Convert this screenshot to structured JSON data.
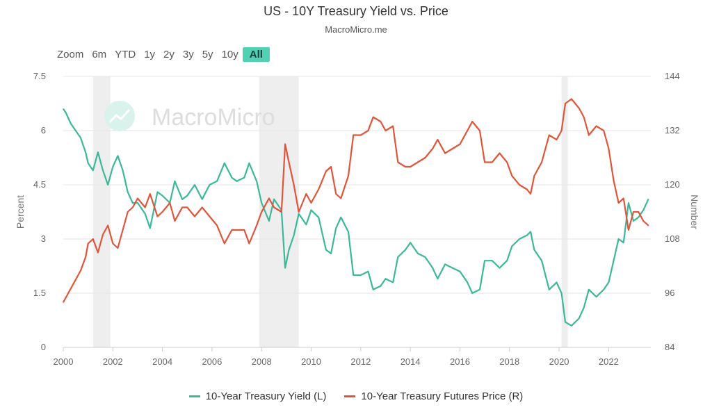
{
  "title": "US - 10Y Treasury Yield vs. Price",
  "subtitle": "MacroMicro.me",
  "watermark": "MacroMicro",
  "zoom": {
    "label": "Zoom",
    "options": [
      "6m",
      "YTD",
      "1y",
      "2y",
      "3y",
      "5y",
      "10y",
      "All"
    ],
    "active": "All"
  },
  "legend": [
    {
      "label": "10-Year Treasury Yield (L)",
      "color": "#3bb89a"
    },
    {
      "label": "10-Year Treasury Futures Price (R)",
      "color": "#e0553a"
    }
  ],
  "chart_data": {
    "type": "line",
    "x_range": [
      2000,
      2023.7
    ],
    "x_ticks": [
      "2000",
      "2002",
      "2004",
      "2006",
      "2008",
      "2010",
      "2012",
      "2014",
      "2016",
      "2018",
      "2020",
      "2022"
    ],
    "y_left": {
      "label": "Percent",
      "range": [
        0,
        7.5
      ],
      "ticks": [
        "0",
        "1.5",
        "3",
        "4.5",
        "6",
        "7.5"
      ]
    },
    "y_right": {
      "label": "Number",
      "range": [
        84,
        144
      ],
      "ticks": [
        "84",
        "96",
        "108",
        "120",
        "132",
        "144"
      ]
    },
    "recession_bands": [
      [
        2001.2,
        2001.9
      ],
      [
        2007.9,
        2009.5
      ],
      [
        2020.1,
        2020.35
      ]
    ],
    "grid": true,
    "legend_position": "bottom",
    "series": [
      {
        "name": "10-Year Treasury Yield (L)",
        "axis": "left",
        "color": "#3bb89a",
        "x": [
          2000.0,
          2000.1,
          2000.3,
          2000.5,
          2000.7,
          2000.9,
          2001.0,
          2001.2,
          2001.4,
          2001.6,
          2001.8,
          2002.0,
          2002.2,
          2002.4,
          2002.6,
          2002.8,
          2003.0,
          2003.3,
          2003.5,
          2003.8,
          2004.0,
          2004.3,
          2004.5,
          2004.8,
          2005.0,
          2005.3,
          2005.6,
          2005.9,
          2006.2,
          2006.5,
          2006.8,
          2007.0,
          2007.3,
          2007.5,
          2007.8,
          2008.0,
          2008.3,
          2008.5,
          2008.8,
          2008.95,
          2009.1,
          2009.3,
          2009.5,
          2009.8,
          2010.0,
          2010.3,
          2010.6,
          2010.8,
          2011.0,
          2011.2,
          2011.5,
          2011.7,
          2012.0,
          2012.3,
          2012.5,
          2012.8,
          2013.0,
          2013.3,
          2013.5,
          2013.8,
          2014.0,
          2014.3,
          2014.6,
          2014.9,
          2015.1,
          2015.4,
          2015.7,
          2016.0,
          2016.3,
          2016.5,
          2016.8,
          2017.0,
          2017.3,
          2017.6,
          2017.9,
          2018.1,
          2018.4,
          2018.7,
          2018.85,
          2019.0,
          2019.3,
          2019.6,
          2019.9,
          2020.1,
          2020.25,
          2020.5,
          2020.8,
          2021.0,
          2021.2,
          2021.5,
          2021.8,
          2022.0,
          2022.2,
          2022.4,
          2022.6,
          2022.8,
          2023.0,
          2023.2,
          2023.4,
          2023.6
        ],
        "values": [
          6.6,
          6.5,
          6.2,
          6.0,
          5.8,
          5.4,
          5.1,
          4.9,
          5.4,
          4.9,
          4.5,
          5.0,
          5.3,
          4.9,
          4.3,
          4.0,
          4.0,
          3.7,
          3.3,
          4.3,
          4.2,
          4.0,
          4.6,
          4.1,
          4.2,
          4.5,
          4.1,
          4.5,
          4.6,
          5.1,
          4.7,
          4.6,
          4.7,
          5.1,
          4.6,
          4.0,
          3.5,
          4.1,
          3.8,
          2.2,
          2.7,
          3.1,
          3.7,
          3.4,
          3.8,
          3.6,
          2.7,
          2.6,
          3.3,
          3.6,
          3.2,
          2.0,
          2.0,
          2.1,
          1.6,
          1.7,
          1.9,
          1.8,
          2.5,
          2.7,
          2.9,
          2.6,
          2.5,
          2.2,
          1.9,
          2.3,
          2.2,
          2.1,
          1.8,
          1.5,
          1.6,
          2.4,
          2.4,
          2.2,
          2.4,
          2.8,
          3.0,
          3.1,
          3.2,
          2.7,
          2.4,
          1.6,
          1.8,
          1.5,
          0.7,
          0.6,
          0.8,
          1.1,
          1.6,
          1.4,
          1.6,
          1.8,
          2.4,
          3.0,
          2.9,
          4.0,
          3.5,
          3.6,
          3.8,
          4.1
        ]
      },
      {
        "name": "10-Year Treasury Futures Price (R)",
        "axis": "right",
        "color": "#e0553a",
        "x": [
          2000.0,
          2000.1,
          2000.3,
          2000.5,
          2000.7,
          2000.9,
          2001.0,
          2001.2,
          2001.4,
          2001.6,
          2001.8,
          2002.0,
          2002.2,
          2002.4,
          2002.6,
          2002.8,
          2003.0,
          2003.3,
          2003.5,
          2003.8,
          2004.0,
          2004.3,
          2004.5,
          2004.8,
          2005.0,
          2005.3,
          2005.6,
          2005.9,
          2006.2,
          2006.5,
          2006.8,
          2007.0,
          2007.3,
          2007.5,
          2007.8,
          2008.0,
          2008.3,
          2008.5,
          2008.8,
          2008.95,
          2009.1,
          2009.3,
          2009.5,
          2009.8,
          2010.0,
          2010.3,
          2010.6,
          2010.8,
          2011.0,
          2011.2,
          2011.5,
          2011.7,
          2012.0,
          2012.3,
          2012.5,
          2012.8,
          2013.0,
          2013.3,
          2013.5,
          2013.8,
          2014.0,
          2014.3,
          2014.6,
          2014.9,
          2015.1,
          2015.4,
          2015.7,
          2016.0,
          2016.3,
          2016.5,
          2016.8,
          2017.0,
          2017.3,
          2017.6,
          2017.9,
          2018.1,
          2018.4,
          2018.7,
          2018.85,
          2019.0,
          2019.3,
          2019.6,
          2019.9,
          2020.1,
          2020.25,
          2020.5,
          2020.8,
          2021.0,
          2021.2,
          2021.5,
          2021.8,
          2022.0,
          2022.2,
          2022.4,
          2022.6,
          2022.8,
          2023.0,
          2023.2,
          2023.4,
          2023.6
        ],
        "values": [
          94,
          95,
          97,
          99,
          101,
          104,
          107,
          108,
          105,
          109,
          111,
          107,
          106,
          110,
          114,
          115,
          117,
          115,
          118,
          113,
          114,
          116,
          112,
          115,
          115,
          113,
          115,
          113,
          111,
          107,
          110,
          110,
          110,
          107,
          111,
          114,
          117,
          115,
          114,
          129,
          125,
          120,
          114,
          118,
          116,
          119,
          123,
          124,
          118,
          117,
          122,
          131,
          131,
          132,
          135,
          134,
          132,
          133,
          125,
          124,
          124,
          125,
          126,
          128,
          130,
          127,
          128,
          129,
          132,
          134,
          132,
          125,
          125,
          127,
          125,
          122,
          120,
          119,
          118,
          122,
          125,
          131,
          130,
          132,
          138,
          139,
          137,
          135,
          131,
          133,
          132,
          128,
          121,
          116,
          117,
          110,
          114,
          114,
          112,
          111
        ]
      }
    ]
  }
}
